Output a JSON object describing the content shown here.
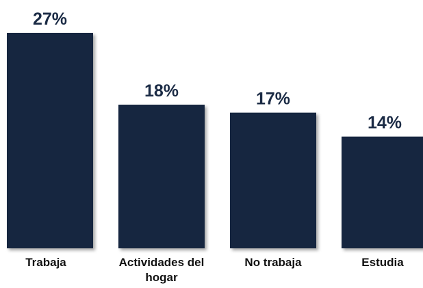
{
  "chart_data": {
    "type": "bar",
    "categories": [
      "Trabaja",
      "Actividades del hogar",
      "No trabaja",
      "Estudia"
    ],
    "values": [
      27,
      18,
      17,
      14
    ],
    "value_labels": [
      "27%",
      "18%",
      "17%",
      "14%"
    ],
    "color": "#13253f"
  }
}
